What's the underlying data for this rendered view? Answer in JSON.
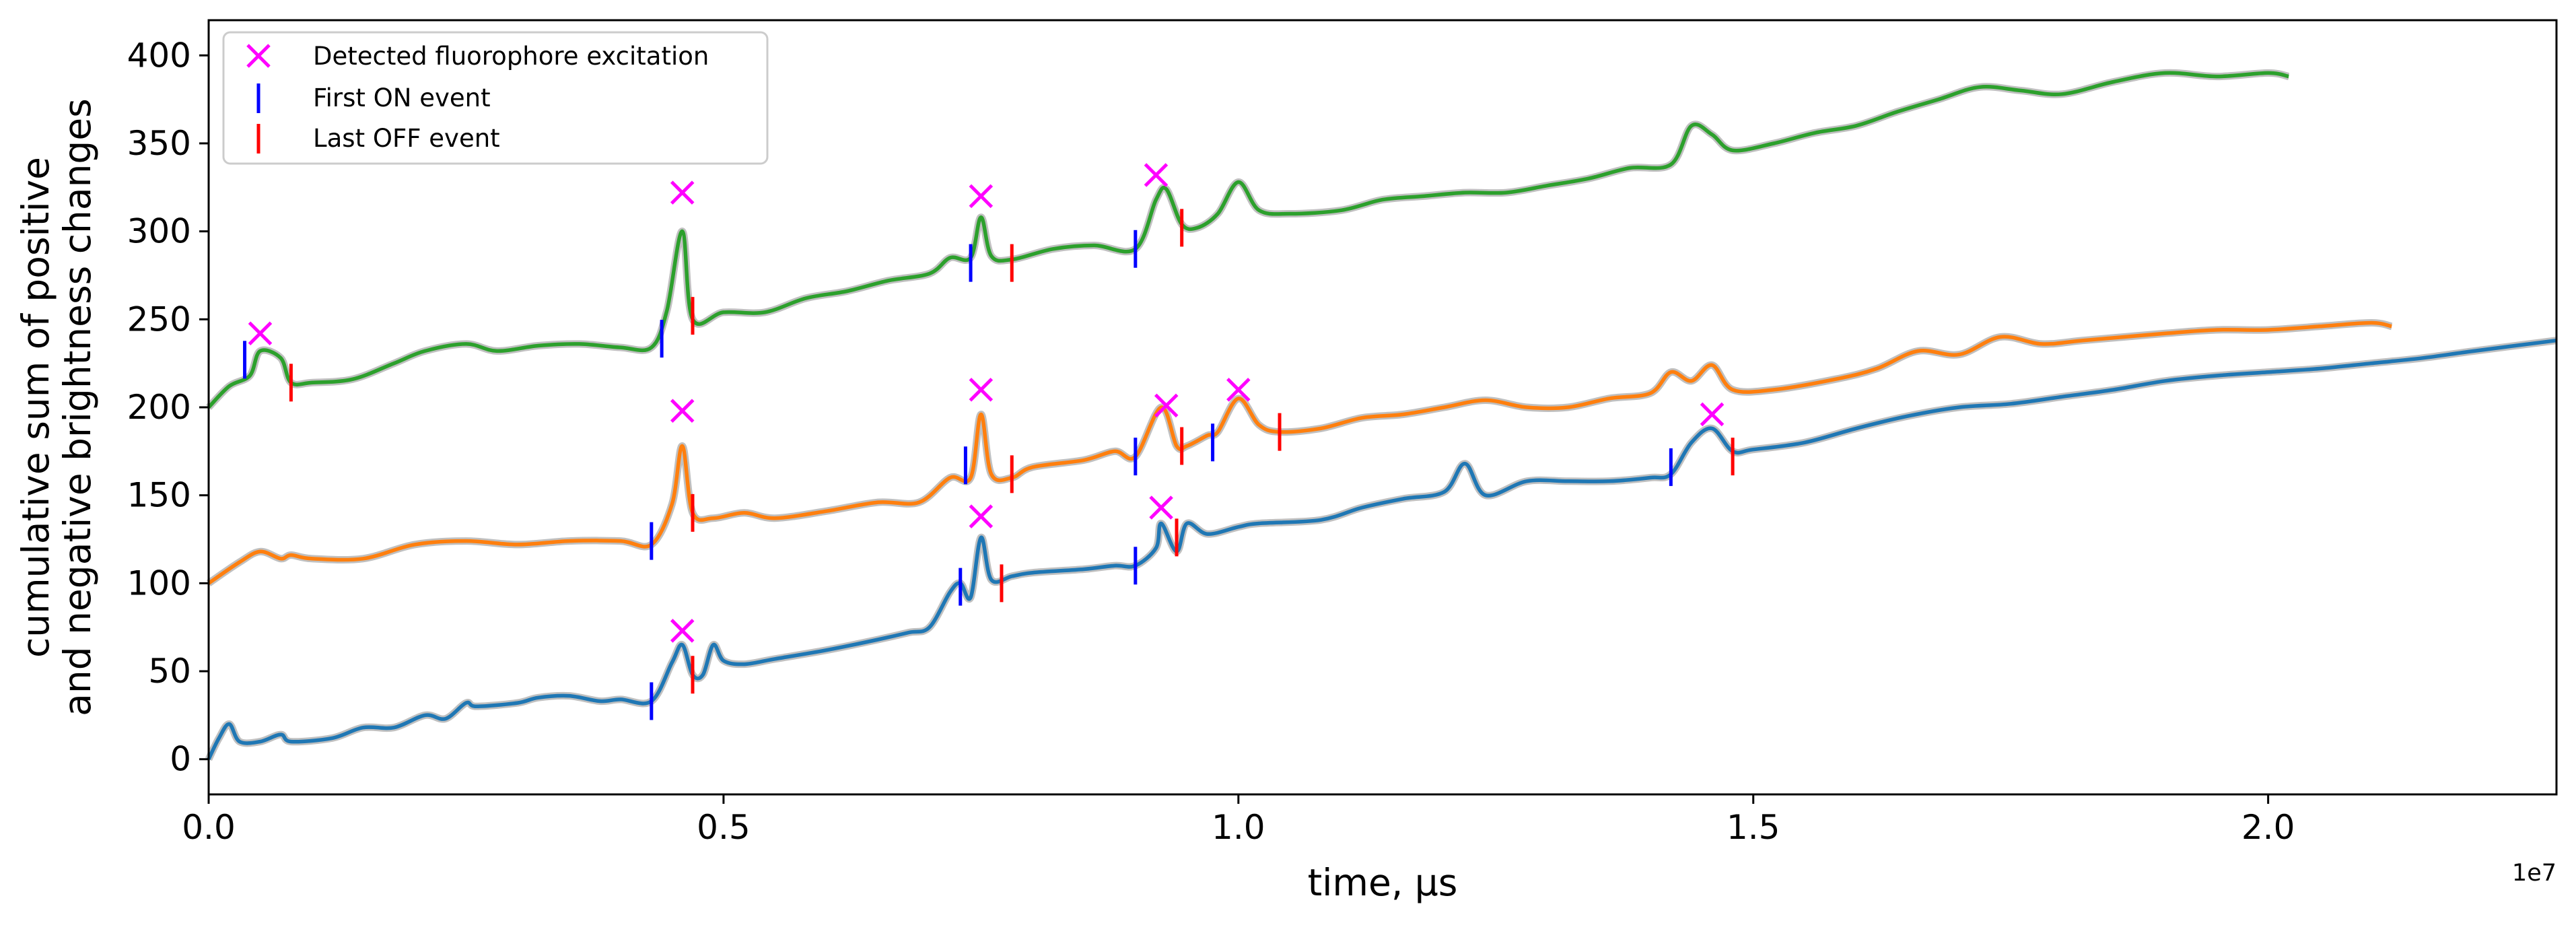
{
  "chart_data": {
    "type": "line",
    "title": "",
    "xlabel": "time, µs",
    "ylabel_line1": "cumulative sum of positive",
    "ylabel_line2": "and negative brightness changes",
    "x_offset_label": "1e7",
    "xlim": [
      0,
      22800000
    ],
    "ylim": [
      -20,
      420
    ],
    "x_ticks": [
      0,
      5000000,
      10000000,
      15000000,
      20000000
    ],
    "x_tick_labels": [
      "0.0",
      "0.5",
      "1.0",
      "1.5",
      "2.0"
    ],
    "y_ticks": [
      0,
      50,
      100,
      150,
      200,
      250,
      300,
      350,
      400
    ],
    "y_tick_labels": [
      "0",
      "50",
      "100",
      "150",
      "200",
      "250",
      "300",
      "350",
      "400"
    ],
    "grid": false,
    "legend_position": "top-left",
    "legend": [
      {
        "label": "Detected fluorophore excitation",
        "marker": "x",
        "color": "#ff00ff"
      },
      {
        "label": "First ON event",
        "marker": "vline",
        "color": "#0000ff"
      },
      {
        "label": "Last OFF event",
        "marker": "vline",
        "color": "#ff0000"
      }
    ],
    "series": [
      {
        "color": "#1f77b4",
        "points": [
          [
            0,
            0
          ],
          [
            100000,
            12
          ],
          [
            200000,
            20
          ],
          [
            300000,
            10
          ],
          [
            500000,
            10
          ],
          [
            700000,
            14
          ],
          [
            800000,
            10
          ],
          [
            1200000,
            12
          ],
          [
            1500000,
            18
          ],
          [
            1800000,
            18
          ],
          [
            2100000,
            25
          ],
          [
            2300000,
            23
          ],
          [
            2500000,
            32
          ],
          [
            2600000,
            30
          ],
          [
            3000000,
            32
          ],
          [
            3200000,
            35
          ],
          [
            3500000,
            36
          ],
          [
            3800000,
            33
          ],
          [
            4000000,
            34
          ],
          [
            4300000,
            33
          ],
          [
            4500000,
            55
          ],
          [
            4600000,
            65
          ],
          [
            4700000,
            48
          ],
          [
            4800000,
            48
          ],
          [
            4900000,
            65
          ],
          [
            5000000,
            56
          ],
          [
            5200000,
            54
          ],
          [
            5500000,
            57
          ],
          [
            6000000,
            62
          ],
          [
            6500000,
            68
          ],
          [
            6800000,
            72
          ],
          [
            7000000,
            75
          ],
          [
            7200000,
            95
          ],
          [
            7300000,
            100
          ],
          [
            7400000,
            92
          ],
          [
            7500000,
            126
          ],
          [
            7600000,
            102
          ],
          [
            7800000,
            104
          ],
          [
            8000000,
            106
          ],
          [
            8500000,
            108
          ],
          [
            8800000,
            110
          ],
          [
            9000000,
            110
          ],
          [
            9200000,
            120
          ],
          [
            9250000,
            134
          ],
          [
            9400000,
            118
          ],
          [
            9500000,
            134
          ],
          [
            9700000,
            128
          ],
          [
            10000000,
            132
          ],
          [
            10200000,
            134
          ],
          [
            10800000,
            136
          ],
          [
            11200000,
            143
          ],
          [
            11600000,
            148
          ],
          [
            12000000,
            152
          ],
          [
            12200000,
            168
          ],
          [
            12400000,
            150
          ],
          [
            12800000,
            158
          ],
          [
            13200000,
            158
          ],
          [
            13600000,
            158
          ],
          [
            14000000,
            160
          ],
          [
            14200000,
            162
          ],
          [
            14400000,
            180
          ],
          [
            14600000,
            188
          ],
          [
            14800000,
            175
          ],
          [
            15000000,
            176
          ],
          [
            15500000,
            180
          ],
          [
            16000000,
            188
          ],
          [
            16500000,
            195
          ],
          [
            17000000,
            200
          ],
          [
            17500000,
            202
          ],
          [
            18000000,
            206
          ],
          [
            18500000,
            210
          ],
          [
            19000000,
            215
          ],
          [
            19500000,
            218
          ],
          [
            20000000,
            220
          ],
          [
            20500000,
            222
          ],
          [
            21000000,
            225
          ],
          [
            21500000,
            228
          ],
          [
            22000000,
            232
          ],
          [
            22800000,
            238
          ]
        ]
      },
      {
        "color": "#ff7f0e",
        "points": [
          [
            0,
            100
          ],
          [
            300000,
            112
          ],
          [
            500000,
            118
          ],
          [
            700000,
            114
          ],
          [
            800000,
            116
          ],
          [
            1000000,
            114
          ],
          [
            1500000,
            114
          ],
          [
            2000000,
            122
          ],
          [
            2500000,
            124
          ],
          [
            3000000,
            122
          ],
          [
            3500000,
            124
          ],
          [
            4000000,
            124
          ],
          [
            4300000,
            122
          ],
          [
            4500000,
            145
          ],
          [
            4600000,
            178
          ],
          [
            4700000,
            140
          ],
          [
            4900000,
            137
          ],
          [
            5200000,
            140
          ],
          [
            5500000,
            137
          ],
          [
            6000000,
            141
          ],
          [
            6500000,
            146
          ],
          [
            6900000,
            146
          ],
          [
            7200000,
            160
          ],
          [
            7400000,
            160
          ],
          [
            7500000,
            196
          ],
          [
            7600000,
            162
          ],
          [
            7800000,
            160
          ],
          [
            8000000,
            166
          ],
          [
            8500000,
            170
          ],
          [
            8800000,
            175
          ],
          [
            9000000,
            172
          ],
          [
            9250000,
            200
          ],
          [
            9400000,
            178
          ],
          [
            9500000,
            178
          ],
          [
            9700000,
            184
          ],
          [
            9800000,
            186
          ],
          [
            10000000,
            205
          ],
          [
            10200000,
            190
          ],
          [
            10400000,
            186
          ],
          [
            10800000,
            188
          ],
          [
            11200000,
            194
          ],
          [
            11600000,
            196
          ],
          [
            12000000,
            200
          ],
          [
            12400000,
            204
          ],
          [
            12800000,
            200
          ],
          [
            13200000,
            200
          ],
          [
            13600000,
            205
          ],
          [
            14000000,
            208
          ],
          [
            14200000,
            220
          ],
          [
            14400000,
            215
          ],
          [
            14600000,
            224
          ],
          [
            14800000,
            210
          ],
          [
            15200000,
            210
          ],
          [
            15800000,
            216
          ],
          [
            16200000,
            222
          ],
          [
            16600000,
            232
          ],
          [
            17000000,
            230
          ],
          [
            17400000,
            240
          ],
          [
            17800000,
            236
          ],
          [
            18200000,
            238
          ],
          [
            18600000,
            240
          ],
          [
            19000000,
            242
          ],
          [
            19500000,
            244
          ],
          [
            20000000,
            244
          ],
          [
            20500000,
            246
          ],
          [
            21000000,
            248
          ],
          [
            21200000,
            246
          ]
        ]
      },
      {
        "color": "#2ca02c",
        "points": [
          [
            0,
            200
          ],
          [
            200000,
            212
          ],
          [
            400000,
            218
          ],
          [
            500000,
            232
          ],
          [
            700000,
            228
          ],
          [
            800000,
            214
          ],
          [
            1000000,
            214
          ],
          [
            1400000,
            216
          ],
          [
            1800000,
            225
          ],
          [
            2100000,
            232
          ],
          [
            2500000,
            236
          ],
          [
            2800000,
            232
          ],
          [
            3200000,
            235
          ],
          [
            3600000,
            236
          ],
          [
            4000000,
            234
          ],
          [
            4300000,
            234
          ],
          [
            4450000,
            255
          ],
          [
            4600000,
            300
          ],
          [
            4700000,
            250
          ],
          [
            5000000,
            254
          ],
          [
            5400000,
            254
          ],
          [
            5800000,
            262
          ],
          [
            6200000,
            266
          ],
          [
            6600000,
            272
          ],
          [
            7000000,
            276
          ],
          [
            7200000,
            285
          ],
          [
            7400000,
            285
          ],
          [
            7500000,
            308
          ],
          [
            7600000,
            286
          ],
          [
            7800000,
            284
          ],
          [
            8200000,
            290
          ],
          [
            8600000,
            292
          ],
          [
            9000000,
            290
          ],
          [
            9200000,
            318
          ],
          [
            9300000,
            324
          ],
          [
            9450000,
            304
          ],
          [
            9600000,
            302
          ],
          [
            9800000,
            310
          ],
          [
            10000000,
            328
          ],
          [
            10200000,
            312
          ],
          [
            10500000,
            310
          ],
          [
            11000000,
            312
          ],
          [
            11400000,
            318
          ],
          [
            11800000,
            320
          ],
          [
            12200000,
            322
          ],
          [
            12600000,
            322
          ],
          [
            13000000,
            326
          ],
          [
            13400000,
            330
          ],
          [
            13800000,
            336
          ],
          [
            14200000,
            338
          ],
          [
            14400000,
            360
          ],
          [
            14600000,
            355
          ],
          [
            14800000,
            346
          ],
          [
            15200000,
            350
          ],
          [
            15600000,
            356
          ],
          [
            16000000,
            360
          ],
          [
            16400000,
            368
          ],
          [
            16800000,
            375
          ],
          [
            17200000,
            382
          ],
          [
            17600000,
            380
          ],
          [
            18000000,
            378
          ],
          [
            18500000,
            385
          ],
          [
            19000000,
            390
          ],
          [
            19500000,
            388
          ],
          [
            20000000,
            390
          ],
          [
            20200000,
            388
          ]
        ]
      }
    ],
    "excitation_markers": [
      [
        500000,
        242
      ],
      [
        4600000,
        73
      ],
      [
        4600000,
        198
      ],
      [
        4600000,
        322
      ],
      [
        7500000,
        138
      ],
      [
        7500000,
        210
      ],
      [
        7500000,
        320
      ],
      [
        9200000,
        332
      ],
      [
        9250000,
        143
      ],
      [
        9300000,
        201
      ],
      [
        10000000,
        210
      ],
      [
        14600000,
        196
      ]
    ],
    "first_on_events": [
      [
        350000,
        227
      ],
      [
        4300000,
        33
      ],
      [
        4300000,
        124
      ],
      [
        4400000,
        239
      ],
      [
        7300000,
        98
      ],
      [
        7350000,
        167
      ],
      [
        7400000,
        282
      ],
      [
        9000000,
        110
      ],
      [
        9000000,
        172
      ],
      [
        9000000,
        290
      ],
      [
        9750000,
        180
      ],
      [
        14200000,
        166
      ]
    ],
    "last_off_events": [
      [
        800000,
        214
      ],
      [
        4700000,
        48
      ],
      [
        4700000,
        140
      ],
      [
        4700000,
        252
      ],
      [
        7700000,
        100
      ],
      [
        7800000,
        162
      ],
      [
        7800000,
        282
      ],
      [
        9400000,
        126
      ],
      [
        9450000,
        178
      ],
      [
        9450000,
        302
      ],
      [
        10400000,
        186
      ],
      [
        14800000,
        172
      ]
    ]
  }
}
